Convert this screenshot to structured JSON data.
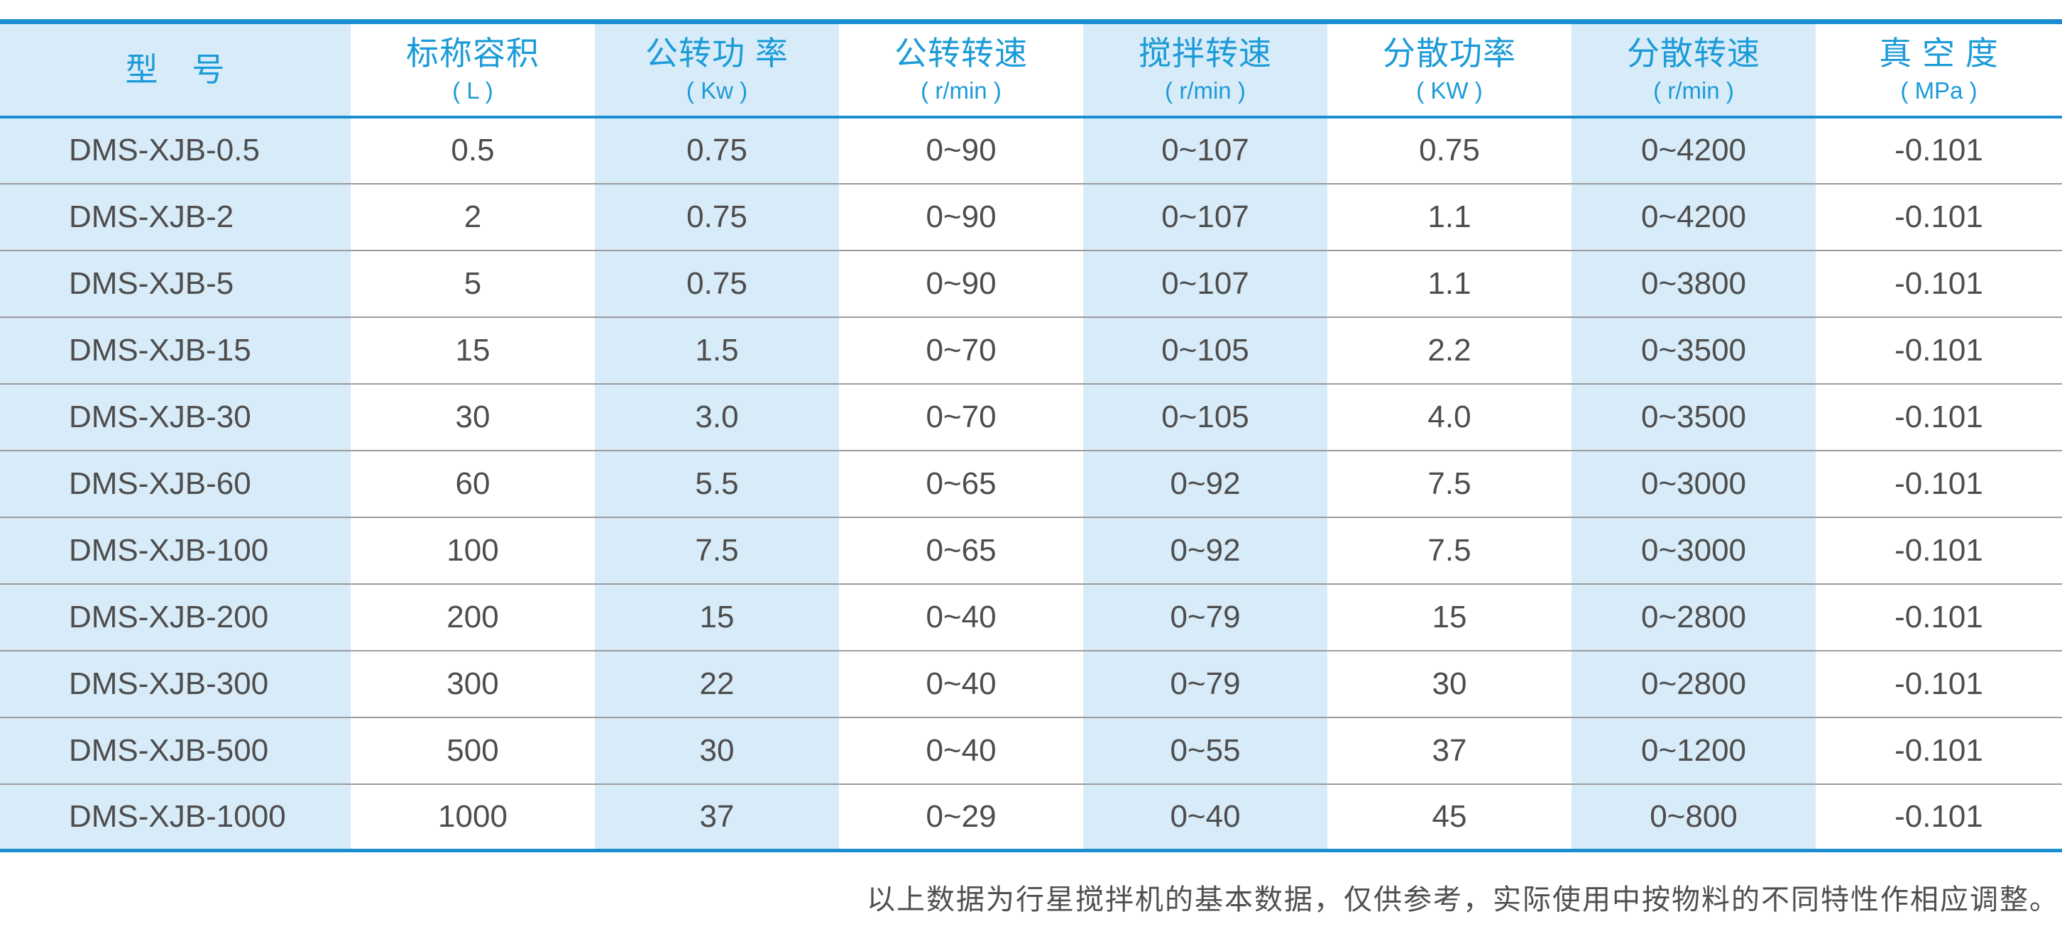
{
  "colors": {
    "accent": "#1b8ecf",
    "header-text": "#1b9bd8",
    "stripe": "#d8ebf8",
    "body-text": "#4d4d4d",
    "separator": "#9b9b9b",
    "footnote-text": "#4f4f4f"
  },
  "table": {
    "columns": [
      {
        "title": "型　号",
        "unit": ""
      },
      {
        "title": "标称容积",
        "unit": "( L )"
      },
      {
        "title": "公转功 率",
        "unit": "( Kw )"
      },
      {
        "title": "公转转速",
        "unit": "( r/min )"
      },
      {
        "title": "搅拌转速",
        "unit": "( r/min )"
      },
      {
        "title": "分散功率",
        "unit": "( KW )"
      },
      {
        "title": "分散转速",
        "unit": "( r/min )"
      },
      {
        "title": "真 空 度",
        "unit": "( MPa )"
      }
    ],
    "rows": [
      [
        "DMS-XJB-0.5",
        "0.5",
        "0.75",
        "0~90",
        "0~107",
        "0.75",
        "0~4200",
        "-0.101"
      ],
      [
        "DMS-XJB-2",
        "2",
        "0.75",
        "0~90",
        "0~107",
        "1.1",
        "0~4200",
        "-0.101"
      ],
      [
        "DMS-XJB-5",
        "5",
        "0.75",
        "0~90",
        "0~107",
        "1.1",
        "0~3800",
        "-0.101"
      ],
      [
        "DMS-XJB-15",
        "15",
        "1.5",
        "0~70",
        "0~105",
        "2.2",
        "0~3500",
        "-0.101"
      ],
      [
        "DMS-XJB-30",
        "30",
        "3.0",
        "0~70",
        "0~105",
        "4.0",
        "0~3500",
        "-0.101"
      ],
      [
        "DMS-XJB-60",
        "60",
        "5.5",
        "0~65",
        "0~92",
        "7.5",
        "0~3000",
        "-0.101"
      ],
      [
        "DMS-XJB-100",
        "100",
        "7.5",
        "0~65",
        "0~92",
        "7.5",
        "0~3000",
        "-0.101"
      ],
      [
        "DMS-XJB-200",
        "200",
        "15",
        "0~40",
        "0~79",
        "15",
        "0~2800",
        "-0.101"
      ],
      [
        "DMS-XJB-300",
        "300",
        "22",
        "0~40",
        "0~79",
        "30",
        "0~2800",
        "-0.101"
      ],
      [
        "DMS-XJB-500",
        "500",
        "30",
        "0~40",
        "0~55",
        "37",
        "0~1200",
        "-0.101"
      ],
      [
        "DMS-XJB-1000",
        "1000",
        "37",
        "0~29",
        "0~40",
        "45",
        "0~800",
        "-0.101"
      ]
    ]
  },
  "footnote": "以上数据为行星搅拌机的基本数据，仅供参考，实际使用中按物料的不同特性作相应调整。"
}
